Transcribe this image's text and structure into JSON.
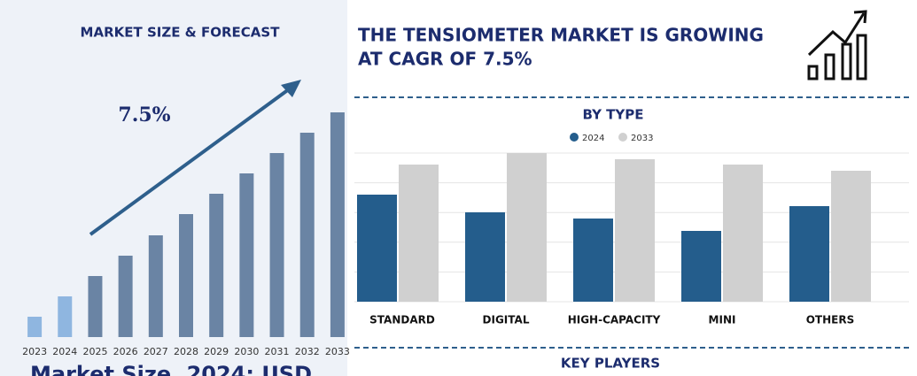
{
  "header": {
    "headline_lines": [
      "THE TENSIOMETER MARKET IS GROWING",
      "AT CAGR OF 7.5%"
    ]
  },
  "key_players_title": "KEY PLAYERS",
  "chart_data": [
    {
      "type": "bar",
      "title": "MARKET SIZE & FORECAST",
      "annotation": "7.5%",
      "caption": "Market Size, 2024: USD",
      "categories": [
        "2023",
        "2024",
        "2025",
        "2026",
        "2027",
        "2028",
        "2029",
        "2030",
        "2031",
        "2032",
        "2033"
      ],
      "values": [
        23,
        46,
        69,
        92,
        115,
        139,
        162,
        185,
        208,
        231,
        254
      ],
      "colors": [
        "#8fb6e0",
        "#8fb6e0",
        "#6a84a4",
        "#6a84a4",
        "#6a84a4",
        "#6a84a4",
        "#6a84a4",
        "#6a84a4",
        "#6a84a4",
        "#6a84a4",
        "#6a84a4"
      ],
      "ylim": [
        0,
        254
      ]
    },
    {
      "type": "grouped_bar",
      "title": "BY TYPE",
      "categories": [
        "STANDARD",
        "DIGITAL",
        "HIGH-CAPACITY",
        "MINI",
        "OTHERS"
      ],
      "series": [
        {
          "name": "2024",
          "color": "#245d8c",
          "values": [
            121,
            101,
            94,
            80,
            108
          ]
        },
        {
          "name": "2033",
          "color": "#d0d0d0",
          "values": [
            155,
            168,
            161,
            155,
            148
          ]
        }
      ],
      "ylim": [
        0,
        168
      ],
      "grid": true
    }
  ]
}
